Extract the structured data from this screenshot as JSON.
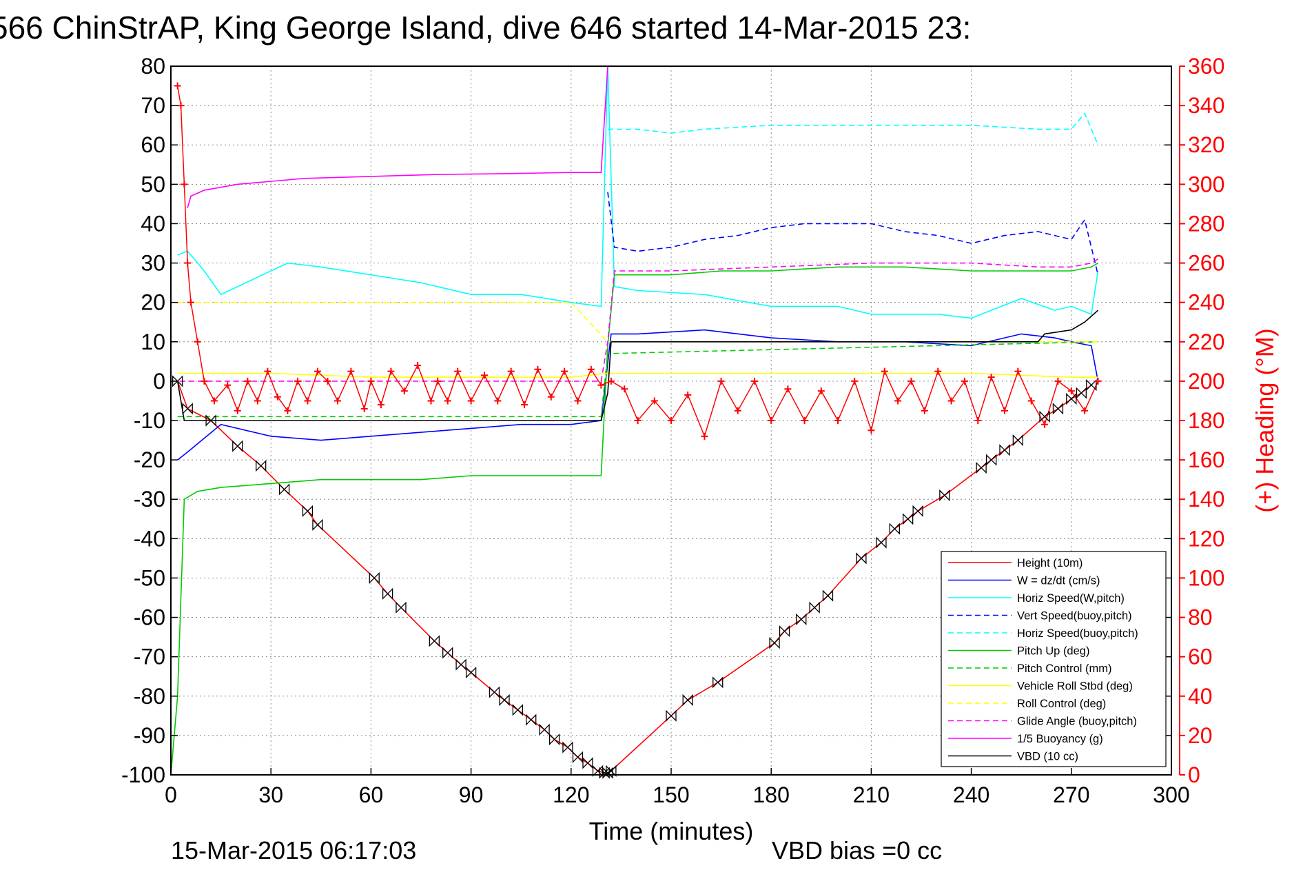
{
  "chart_data": {
    "type": "line",
    "title": "566 ChinStrAP, King George Island, dive 646 started 14-Mar-2015 23:",
    "xlabel": "Time (minutes)",
    "ylabel": "",
    "ylabel_right": "(+) Heading (°M)",
    "xlim": [
      0,
      300
    ],
    "ylim": [
      -100,
      80
    ],
    "ylim_right": [
      0,
      360
    ],
    "x_ticks": [
      0,
      30,
      60,
      90,
      120,
      150,
      180,
      210,
      240,
      270,
      300
    ],
    "y_ticks": [
      -100,
      -90,
      -80,
      -70,
      -60,
      -50,
      -40,
      -30,
      -20,
      -10,
      0,
      10,
      20,
      30,
      40,
      50,
      60,
      70,
      80
    ],
    "y_ticks_right": [
      0,
      20,
      40,
      60,
      80,
      100,
      120,
      140,
      160,
      180,
      200,
      220,
      240,
      260,
      280,
      300,
      320,
      340,
      360
    ],
    "grid": true,
    "legend_position": "bottom-right",
    "footer_left": "15-Mar-2015 06:17:03",
    "footer_right": "VBD bias =0 cc",
    "series": [
      {
        "name": "Height (10m)",
        "color": "#ff0000",
        "style": "solid",
        "marker": "bowtie",
        "x": [
          2,
          5,
          12,
          20,
          27,
          34,
          41,
          44,
          61,
          65,
          69,
          79,
          83,
          87,
          90,
          97,
          100,
          104,
          108,
          112,
          115,
          119,
          122,
          125,
          128,
          130,
          131,
          132,
          150,
          155,
          164,
          181,
          184,
          189,
          193,
          197,
          207,
          213,
          217,
          221,
          224,
          232,
          243,
          246,
          250,
          254,
          262,
          266,
          270,
          273,
          276
        ],
        "y": [
          0,
          -7,
          -10,
          -16.5,
          -21.5,
          -27.5,
          -33,
          -36.5,
          -50,
          -54,
          -57.5,
          -66,
          -69,
          -72,
          -74,
          -79,
          -81,
          -83.5,
          -86,
          -88.5,
          -91,
          -93,
          -95.5,
          -97,
          -99,
          -99.5,
          -99.5,
          -99,
          -85,
          -81,
          -76.5,
          -66.5,
          -63.5,
          -60.5,
          -57.5,
          -54.5,
          -45,
          -41,
          -37.5,
          -35,
          -33,
          -29,
          -22,
          -20,
          -17.5,
          -15,
          -9,
          -7,
          -4.5,
          -3,
          -1
        ]
      },
      {
        "name": "W  = dz/dt (cm/s)",
        "color": "#0000ff",
        "style": "solid",
        "x": [
          2,
          5,
          15,
          30,
          45,
          60,
          75,
          90,
          105,
          120,
          129,
          132,
          140,
          160,
          180,
          200,
          220,
          240,
          255,
          265,
          270,
          276,
          278
        ],
        "y": [
          -20,
          -18,
          -11,
          -14,
          -15,
          -14,
          -13,
          -12,
          -11,
          -11,
          -10,
          12,
          12,
          13,
          11,
          10,
          10,
          9,
          12,
          11,
          10,
          9,
          0
        ]
      },
      {
        "name": "Horiz Speed(W,pitch)",
        "color": "#00ffff",
        "style": "solid",
        "x": [
          2,
          5,
          10,
          15,
          25,
          35,
          45,
          60,
          75,
          90,
          105,
          120,
          129,
          131,
          133,
          140,
          160,
          180,
          200,
          210,
          230,
          240,
          255,
          265,
          270,
          276,
          278
        ],
        "y": [
          32,
          33,
          28,
          22,
          26,
          30,
          29,
          27,
          25,
          22,
          22,
          20,
          19,
          80,
          24,
          23,
          22,
          19,
          19,
          17,
          17,
          16,
          21,
          18,
          19,
          17,
          28
        ]
      },
      {
        "name": "Vert Speed(buoy,pitch)",
        "color": "#0000ff",
        "style": "dashed",
        "x": [
          131,
          133,
          140,
          150,
          160,
          170,
          180,
          190,
          200,
          210,
          220,
          230,
          240,
          250,
          260,
          265,
          270,
          274,
          278
        ],
        "y": [
          48,
          34,
          33,
          34,
          36,
          37,
          39,
          40,
          40,
          40,
          38,
          37,
          35,
          37,
          38,
          37,
          36,
          41,
          27
        ]
      },
      {
        "name": "Horiz Speed(buoy,pitch)",
        "color": "#00ffff",
        "style": "dashed",
        "x": [
          131,
          133,
          140,
          150,
          160,
          180,
          200,
          220,
          240,
          260,
          270,
          274,
          278
        ],
        "y": [
          64,
          64,
          64,
          63,
          64,
          65,
          65,
          65,
          65,
          64,
          64,
          68,
          60
        ]
      },
      {
        "name": "Pitch Up (deg)",
        "color": "#00cc00",
        "style": "solid",
        "x": [
          0,
          2,
          4,
          8,
          15,
          30,
          45,
          60,
          75,
          90,
          105,
          120,
          129,
          131,
          133,
          150,
          165,
          180,
          200,
          220,
          240,
          260,
          270,
          276,
          278
        ],
        "y": [
          -100,
          -80,
          -30,
          -28,
          -27,
          -26,
          -25,
          -25,
          -25,
          -24,
          -24,
          -24,
          -24,
          9,
          27,
          27,
          28,
          28,
          29,
          29,
          28,
          28,
          28,
          29,
          30
        ]
      },
      {
        "name": "Pitch Control (mm)",
        "color": "#00cc00",
        "style": "dashed",
        "x": [
          2,
          129,
          131,
          278
        ],
        "y": [
          -9,
          -9,
          7,
          10
        ]
      },
      {
        "name": "Vehicle Roll Stbd (deg)",
        "color": "#ffff00",
        "style": "solid",
        "x": [
          2,
          30,
          60,
          90,
          120,
          131,
          150,
          180,
          210,
          240,
          270,
          278
        ],
        "y": [
          2,
          2,
          1,
          1,
          1,
          2,
          2,
          2,
          2,
          2,
          1,
          1
        ]
      },
      {
        "name": "Roll Control (deg)",
        "color": "#ffff00",
        "style": "dashed",
        "x": [
          2,
          10,
          20,
          40,
          60,
          80,
          100,
          120,
          131,
          150,
          180,
          210,
          240,
          270,
          278
        ],
        "y": [
          20,
          20,
          20,
          20,
          20,
          20,
          20,
          20,
          10,
          10,
          10,
          10,
          10,
          10,
          10
        ]
      },
      {
        "name": "Glide Angle (buoy,pitch)",
        "color": "#ff00ff",
        "style": "dashed",
        "x": [
          0,
          129,
          131,
          133,
          150,
          180,
          210,
          240,
          260,
          270,
          276,
          278
        ],
        "y": [
          0,
          0,
          10,
          28,
          28,
          29,
          30,
          30,
          29,
          29,
          30,
          31
        ]
      },
      {
        "name": "1/5 Buoyancy (g)",
        "color": "#ff00ff",
        "style": "solid",
        "x": [
          5,
          6,
          10,
          20,
          40,
          60,
          80,
          100,
          120,
          129,
          131,
          132
        ],
        "y": [
          44,
          47,
          48.5,
          50,
          51.5,
          52,
          52.5,
          52.7,
          53,
          53,
          80,
          80
        ]
      },
      {
        "name": "VBD (10 cc)",
        "color": "#000000",
        "style": "solid",
        "x": [
          2,
          4,
          129,
          131,
          132,
          260,
          262,
          270,
          274,
          278
        ],
        "y": [
          0,
          -10,
          -10,
          -3,
          10,
          10,
          12,
          13,
          15,
          18
        ]
      }
    ],
    "heading_series": {
      "name": "Heading",
      "color": "#ff0000",
      "marker": "+",
      "axis": "right",
      "x": [
        2,
        3,
        4,
        5,
        6,
        8,
        10,
        13,
        17,
        20,
        23,
        26,
        29,
        32,
        35,
        38,
        41,
        44,
        47,
        50,
        54,
        58,
        60,
        63,
        66,
        70,
        74,
        78,
        80,
        83,
        86,
        90,
        94,
        98,
        102,
        106,
        110,
        114,
        118,
        122,
        126,
        129,
        132,
        136,
        140,
        145,
        150,
        155,
        160,
        165,
        170,
        175,
        180,
        185,
        190,
        195,
        200,
        205,
        210,
        214,
        218,
        222,
        226,
        230,
        234,
        238,
        242,
        246,
        250,
        254,
        258,
        262,
        266,
        270,
        274,
        278
      ],
      "y": [
        350,
        340,
        300,
        260,
        240,
        220,
        200,
        190,
        198,
        185,
        200,
        190,
        205,
        192,
        185,
        200,
        190,
        205,
        200,
        190,
        205,
        186,
        200,
        188,
        205,
        195,
        208,
        190,
        200,
        190,
        205,
        190,
        203,
        190,
        205,
        188,
        206,
        192,
        205,
        190,
        206,
        198,
        200,
        196,
        180,
        190,
        180,
        193,
        172,
        200,
        185,
        200,
        180,
        196,
        180,
        195,
        180,
        200,
        175,
        205,
        190,
        200,
        185,
        205,
        190,
        200,
        180,
        202,
        185,
        205,
        190,
        178,
        200,
        195,
        185,
        200
      ]
    }
  }
}
